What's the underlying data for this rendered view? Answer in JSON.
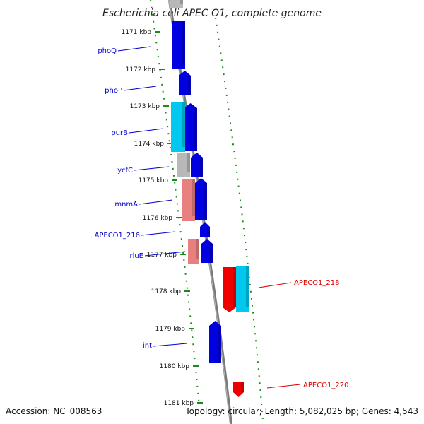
{
  "title": "Escherichia coli APEC O1, complete genome",
  "footer": {
    "accession": "Accession: NC_008563",
    "summary": "Topology: circular; Length: 5,082,025 bp; Genes: 4,543"
  },
  "colors": {
    "backbone": "#7a7a7a",
    "tick": "#1a8a1a",
    "label_forward": "#0000cc",
    "label_reverse": "#dd0000",
    "gene_blue": "#0000e0",
    "gene_red": "#ee0000",
    "gene_cyan": "#00c8ee",
    "gene_pink": "#e88080",
    "gene_gray": "#b8b8b8"
  },
  "ticks": [
    "1171 kbp",
    "1172 kbp",
    "1173 kbp",
    "1174 kbp",
    "1175 kbp",
    "1176 kbp",
    "1177 kbp",
    "1178 kbp",
    "1179 kbp",
    "1180 kbp",
    "1181 kbp"
  ],
  "gene_labels": [
    {
      "name": "phoQ",
      "strand": "forward"
    },
    {
      "name": "phoP",
      "strand": "forward"
    },
    {
      "name": "purB",
      "strand": "forward"
    },
    {
      "name": "ycfC",
      "strand": "forward"
    },
    {
      "name": "mnmA",
      "strand": "forward"
    },
    {
      "name": "APECO1_216",
      "strand": "forward"
    },
    {
      "name": "rluE",
      "strand": "forward"
    },
    {
      "name": "int",
      "strand": "forward"
    },
    {
      "name": "APECO1_218",
      "strand": "reverse"
    },
    {
      "name": "APECO1_220",
      "strand": "reverse"
    }
  ]
}
